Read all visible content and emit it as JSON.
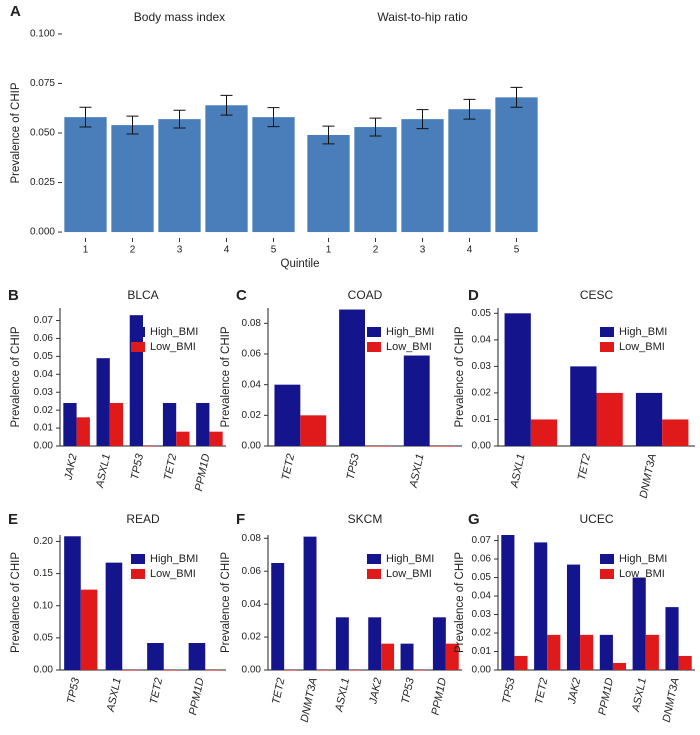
{
  "chart_data": [
    {
      "type": "bar",
      "panel": "A",
      "title": "Body mass index",
      "ylabel": "Prevalence of CHIP",
      "xlabel": "Quintile",
      "categories": [
        "1",
        "2",
        "3",
        "4",
        "5"
      ],
      "values": [
        0.058,
        0.054,
        0.057,
        0.064,
        0.058
      ],
      "errors": [
        0.005,
        0.0045,
        0.0045,
        0.005,
        0.0048
      ],
      "color": "#4a7ebb",
      "ylim": [
        -0.003,
        0.103
      ],
      "yticks": [
        {
          "value": 0,
          "label": "0.000"
        },
        {
          "value": 0.025,
          "label": "0.025"
        },
        {
          "value": 0.05,
          "label": "0.050"
        },
        {
          "value": 0.075,
          "label": "0.075"
        },
        {
          "value": 0.1,
          "label": "0.100"
        }
      ]
    },
    {
      "type": "bar",
      "title": "Waist-to-hip ratio",
      "categories": [
        "1",
        "2",
        "3",
        "4",
        "5"
      ],
      "values": [
        0.049,
        0.053,
        0.057,
        0.062,
        0.068
      ],
      "errors": [
        0.0045,
        0.0045,
        0.0048,
        0.005,
        0.005
      ],
      "color": "#4a7ebb",
      "ylim": [
        -0.003,
        0.103
      ]
    },
    {
      "type": "grouped-bar",
      "panel": "B",
      "title": "BLCA",
      "ylabel": "Prevalence of CHIP",
      "categories": [
        "JAK2",
        "ASXL1",
        "TP53",
        "TET2",
        "PPM1D"
      ],
      "series": [
        {
          "name": "High_BMI",
          "color": "#14148c",
          "values": [
            0.024,
            0.049,
            0.073,
            0.024,
            0.024
          ]
        },
        {
          "name": "Low_BMI",
          "color": "#e0191b",
          "values": [
            0.016,
            0.024,
            0,
            0.008,
            0.008
          ]
        }
      ],
      "ylim": [
        0,
        0.077
      ],
      "legend": "upper right",
      "yticks": [
        {
          "value": 0,
          "label": "0.00"
        },
        {
          "value": 0.01,
          "label": "0.01"
        },
        {
          "value": 0.02,
          "label": "0.02"
        },
        {
          "value": 0.03,
          "label": "0.03"
        },
        {
          "value": 0.04,
          "label": "0.04"
        },
        {
          "value": 0.05,
          "label": "0.05"
        },
        {
          "value": 0.06,
          "label": "0.06"
        },
        {
          "value": 0.07,
          "label": "0.07"
        }
      ]
    },
    {
      "type": "grouped-bar",
      "panel": "C",
      "title": "COAD",
      "ylabel": "Prevalence of CHIP",
      "categories": [
        "TET2",
        "TP53",
        "ASXL1"
      ],
      "series": [
        {
          "name": "High_BMI",
          "color": "#14148c",
          "values": [
            0.04,
            0.089,
            0.059
          ]
        },
        {
          "name": "Low_BMI",
          "color": "#e0191b",
          "values": [
            0.02,
            0,
            0
          ]
        }
      ],
      "ylim": [
        0,
        0.09
      ],
      "legend": "upper right",
      "yticks": [
        {
          "value": 0,
          "label": "0.00"
        },
        {
          "value": 0.02,
          "label": "0.02"
        },
        {
          "value": 0.04,
          "label": "0.04"
        },
        {
          "value": 0.06,
          "label": "0.06"
        },
        {
          "value": 0.08,
          "label": "0.08"
        }
      ]
    },
    {
      "type": "grouped-bar",
      "panel": "D",
      "title": "CESC",
      "ylabel": "Prevalence of CHIP",
      "categories": [
        "ASXL1",
        "TET2",
        "DNMT3A"
      ],
      "series": [
        {
          "name": "High_BMI",
          "color": "#14148c",
          "values": [
            0.05,
            0.03,
            0.02
          ]
        },
        {
          "name": "Low_BMI",
          "color": "#e0191b",
          "values": [
            0.01,
            0.02,
            0.01
          ]
        }
      ],
      "ylim": [
        0,
        0.052
      ],
      "legend": "upper right",
      "yticks": [
        {
          "value": 0,
          "label": "0.00"
        },
        {
          "value": 0.01,
          "label": "0.01"
        },
        {
          "value": 0.02,
          "label": "0.02"
        },
        {
          "value": 0.03,
          "label": "0.03"
        },
        {
          "value": 0.04,
          "label": "0.04"
        },
        {
          "value": 0.05,
          "label": "0.05"
        }
      ]
    },
    {
      "type": "grouped-bar",
      "panel": "E",
      "title": "READ",
      "ylabel": "Prevalence of CHIP",
      "categories": [
        "TP53",
        "ASXL1",
        "TET2",
        "PPM1D"
      ],
      "series": [
        {
          "name": "High_BMI",
          "color": "#14148c",
          "values": [
            0.208,
            0.167,
            0.042,
            0.042
          ]
        },
        {
          "name": "Low_BMI",
          "color": "#e0191b",
          "values": [
            0.125,
            0,
            0,
            0
          ]
        }
      ],
      "ylim": [
        0,
        0.21
      ],
      "legend": "upper right",
      "yticks": [
        {
          "value": 0,
          "label": "0.00"
        },
        {
          "value": 0.05,
          "label": "0.05"
        },
        {
          "value": 0.1,
          "label": "0.10"
        },
        {
          "value": 0.15,
          "label": "0.15"
        },
        {
          "value": 0.2,
          "label": "0.20"
        }
      ]
    },
    {
      "type": "grouped-bar",
      "panel": "F",
      "title": "SKCM",
      "ylabel": "Prevalence of CHIP",
      "categories": [
        "TET2",
        "DNMT3A",
        "ASXL1",
        "JAK2",
        "TP53",
        "PPM1D"
      ],
      "series": [
        {
          "name": "High_BMI",
          "color": "#14148c",
          "values": [
            0.065,
            0.081,
            0.032,
            0.032,
            0.016,
            0.032
          ]
        },
        {
          "name": "Low_BMI",
          "color": "#e0191b",
          "values": [
            0,
            0,
            0,
            0.016,
            0,
            0.016
          ]
        }
      ],
      "ylim": [
        0,
        0.082
      ],
      "legend": "upper right",
      "yticks": [
        {
          "value": 0,
          "label": "0.00"
        },
        {
          "value": 0.02,
          "label": "0.02"
        },
        {
          "value": 0.04,
          "label": "0.04"
        },
        {
          "value": 0.06,
          "label": "0.06"
        },
        {
          "value": 0.08,
          "label": "0.08"
        }
      ]
    },
    {
      "type": "grouped-bar",
      "panel": "G",
      "title": "UCEC",
      "ylabel": "Prevalence of CHIP",
      "categories": [
        "TP53",
        "TET2",
        "JAK2",
        "PPM1D",
        "ASXL1",
        "DNMT3A"
      ],
      "series": [
        {
          "name": "High_BMI",
          "color": "#14148c",
          "values": [
            0.073,
            0.069,
            0.057,
            0.019,
            0.05,
            0.034
          ]
        },
        {
          "name": "Low_BMI",
          "color": "#e0191b",
          "values": [
            0.0076,
            0.019,
            0.019,
            0.0038,
            0.019,
            0.0076
          ]
        }
      ],
      "ylim": [
        0,
        0.073
      ],
      "legend": "upper right",
      "yticks": [
        {
          "value": 0,
          "label": "0.00"
        },
        {
          "value": 0.01,
          "label": "0.01"
        },
        {
          "value": 0.02,
          "label": "0.02"
        },
        {
          "value": 0.03,
          "label": "0.03"
        },
        {
          "value": 0.04,
          "label": "0.04"
        },
        {
          "value": 0.05,
          "label": "0.05"
        },
        {
          "value": 0.06,
          "label": "0.06"
        },
        {
          "value": 0.07,
          "label": "0.07"
        }
      ]
    }
  ]
}
